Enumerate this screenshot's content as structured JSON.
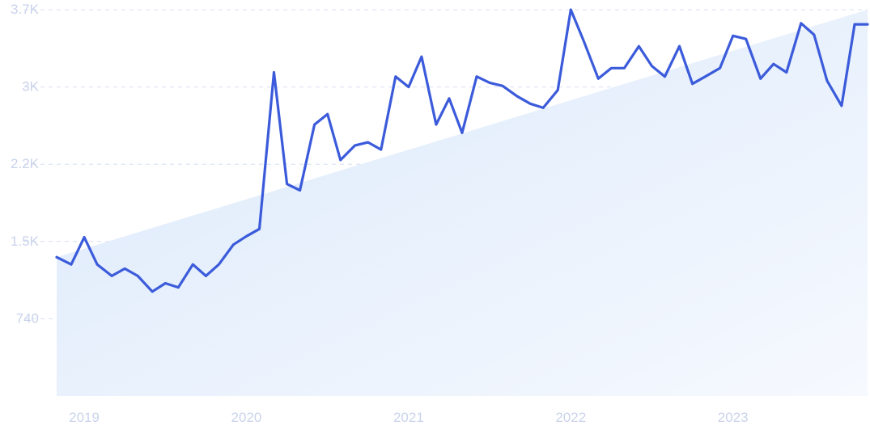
{
  "chart_data": {
    "type": "line",
    "title": "",
    "xlabel": "",
    "ylabel": "",
    "y_ticks": [
      {
        "value": 740,
        "label": "740"
      },
      {
        "value": 1480,
        "label": "1.5K"
      },
      {
        "value": 2220,
        "label": "2.2K"
      },
      {
        "value": 2960,
        "label": "3K"
      },
      {
        "value": 3700,
        "label": "3.7K"
      }
    ],
    "x_ticks": [
      {
        "value": 2019.0,
        "label": "2019"
      },
      {
        "value": 2020.0,
        "label": "2020"
      },
      {
        "value": 2021.0,
        "label": "2021"
      },
      {
        "value": 2022.0,
        "label": "2022"
      },
      {
        "value": 2023.0,
        "label": "2023"
      }
    ],
    "xlim": [
      2018.83,
      2023.83
    ],
    "ylim": [
      0,
      3700
    ],
    "grid": true,
    "legend": "none",
    "colors": {
      "line": "#3b5bdb",
      "trend_fill": "#dceafb",
      "grid": "#d6dff0",
      "tick_label": "#c9d3ea"
    },
    "trend": {
      "start": 1330,
      "end": 3700
    },
    "series": [
      {
        "x": [
          2018.83,
          2018.92,
          2019.0,
          2019.08,
          2019.17,
          2019.25,
          2019.33,
          2019.42,
          2019.5,
          2019.58,
          2019.67,
          2019.75,
          2019.83,
          2019.92,
          2020.0,
          2020.08,
          2020.17,
          2020.25,
          2020.33,
          2020.42,
          2020.5,
          2020.58,
          2020.67,
          2020.75,
          2020.83,
          2020.92,
          2021.0,
          2021.08,
          2021.17,
          2021.25,
          2021.33,
          2021.42,
          2021.5,
          2021.58,
          2021.67,
          2021.75,
          2021.83,
          2021.92,
          2022.0,
          2022.08,
          2022.17,
          2022.25,
          2022.33,
          2022.42,
          2022.5,
          2022.58,
          2022.67,
          2022.75,
          2022.83,
          2022.92,
          2023.0,
          2023.08,
          2023.17,
          2023.25,
          2023.33,
          2023.42,
          2023.5,
          2023.58,
          2023.67,
          2023.75,
          2023.83
        ],
        "values": [
          1330,
          1260,
          1520,
          1260,
          1150,
          1220,
          1150,
          1000,
          1080,
          1040,
          1260,
          1150,
          1260,
          1450,
          1530,
          1600,
          3100,
          2030,
          1970,
          2600,
          2700,
          2260,
          2400,
          2430,
          2360,
          3060,
          2960,
          3250,
          2600,
          2850,
          2520,
          3060,
          3000,
          2970,
          2870,
          2800,
          2760,
          2930,
          3700,
          3400,
          3040,
          3140,
          3140,
          3350,
          3160,
          3060,
          3350,
          2990,
          3060,
          3140,
          3450,
          3420,
          3040,
          3180,
          3100,
          3570,
          3460,
          3020,
          2780,
          3560,
          3560
        ]
      }
    ]
  }
}
